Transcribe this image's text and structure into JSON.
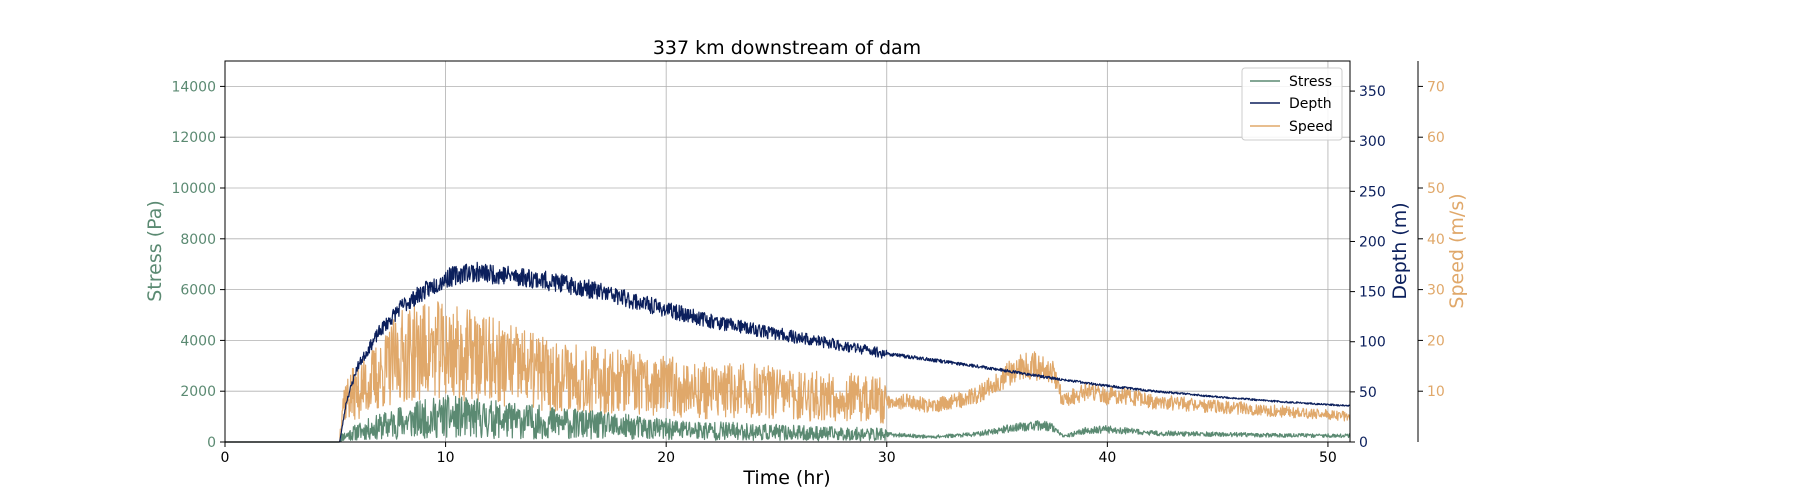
{
  "chart_data": {
    "type": "line",
    "title": "337 km downstream of dam",
    "xlabel": "Time (hr)",
    "xlim": [
      0,
      51
    ],
    "xticks": [
      0,
      10,
      20,
      30,
      40,
      50
    ],
    "grid": true,
    "legend_position": "top-right",
    "axes": {
      "stress": {
        "label": "Stress (Pa)",
        "color": "#5b8a72",
        "ylim": [
          0,
          15000
        ],
        "ticks": [
          0,
          2000,
          4000,
          6000,
          8000,
          10000,
          12000,
          14000
        ],
        "side": "left"
      },
      "depth": {
        "label": "Depth (m)",
        "color": "#0b1f5c",
        "ylim": [
          0,
          380
        ],
        "ticks": [
          0,
          50,
          100,
          150,
          200,
          250,
          300,
          350
        ],
        "side": "right"
      },
      "speed": {
        "label": "Speed (m/s)",
        "color": "#e0a86a",
        "ylim": [
          0,
          75
        ],
        "ticks": [
          10,
          20,
          30,
          40,
          50,
          60,
          70
        ],
        "side": "right-outer"
      }
    },
    "series": [
      {
        "name": "Stress",
        "axis": "stress",
        "color": "#5b8a72",
        "noise": 0.85,
        "x": [
          0,
          5.2,
          5.3,
          6,
          7,
          8,
          9,
          10,
          11,
          12,
          13,
          14,
          15,
          16,
          17,
          18,
          19,
          20,
          22,
          24,
          26,
          28,
          30,
          32,
          33,
          34,
          35,
          36,
          37,
          37.5,
          38,
          39,
          40,
          42,
          45,
          48,
          51
        ],
        "y": [
          0,
          0,
          200,
          400,
          600,
          800,
          900,
          1000,
          950,
          900,
          850,
          800,
          750,
          700,
          650,
          600,
          550,
          500,
          450,
          400,
          350,
          320,
          300,
          200,
          250,
          300,
          450,
          600,
          650,
          600,
          200,
          450,
          500,
          350,
          300,
          260,
          250
        ]
      },
      {
        "name": "Depth",
        "axis": "depth",
        "color": "#0b1f5c",
        "noise": 0.06,
        "x": [
          0,
          5.2,
          5.5,
          6,
          7,
          8,
          9,
          10,
          11,
          12,
          13,
          14,
          15,
          16,
          17,
          18,
          19,
          20,
          22,
          24,
          26,
          28,
          30,
          32,
          34,
          36,
          38,
          40,
          42,
          45,
          48,
          51
        ],
        "y": [
          0,
          0,
          40,
          75,
          110,
          135,
          150,
          163,
          170,
          168,
          166,
          163,
          159,
          155,
          150,
          144,
          138,
          132,
          121,
          112,
          104,
          96,
          88,
          82,
          76,
          69,
          62,
          56,
          51,
          45,
          40,
          36
        ]
      },
      {
        "name": "Speed",
        "axis": "speed",
        "color": "#e0a86a",
        "noise": 0.55,
        "x": [
          0,
          5.2,
          5.3,
          6,
          7,
          8,
          9,
          10,
          11,
          12,
          13,
          14,
          15,
          16,
          17,
          18,
          19,
          20,
          22,
          24,
          26,
          28,
          30,
          31,
          32,
          33,
          34,
          35,
          36,
          37,
          37.5,
          38,
          39,
          40,
          41,
          42,
          45,
          48,
          51
        ],
        "y": [
          0,
          0,
          8,
          10,
          13,
          17,
          18,
          18,
          17,
          16,
          15,
          14,
          13,
          13,
          12,
          12,
          11,
          11,
          10,
          10,
          9,
          9,
          8,
          8,
          7,
          8,
          9,
          12,
          15,
          15,
          14,
          8,
          10,
          9,
          9,
          8,
          7,
          6,
          5
        ]
      }
    ]
  }
}
